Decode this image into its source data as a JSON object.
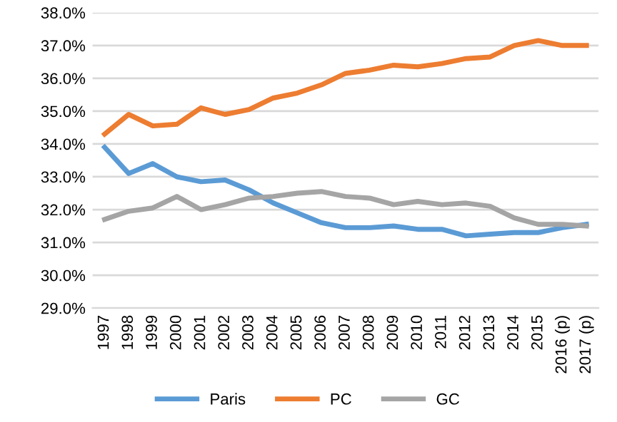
{
  "chart_data": {
    "type": "line",
    "categories": [
      "1997",
      "1998",
      "1999",
      "2000",
      "2001",
      "2002",
      "2003",
      "2004",
      "2005",
      "2006",
      "2007",
      "2008",
      "2009",
      "2010",
      "2011",
      "2012",
      "2013",
      "2014",
      "2015",
      "2016 (p)",
      "2017 (p)"
    ],
    "series": [
      {
        "name": "Paris",
        "color": "#5b9bd5",
        "values": [
          33.9,
          33.1,
          33.4,
          33.0,
          32.85,
          32.9,
          32.6,
          32.2,
          31.9,
          31.6,
          31.45,
          31.45,
          31.5,
          31.4,
          31.4,
          31.2,
          31.25,
          31.3,
          31.3,
          31.45,
          31.55
        ]
      },
      {
        "name": "PC",
        "color": "#ed7d31",
        "values": [
          34.3,
          34.9,
          34.55,
          34.6,
          35.1,
          34.9,
          35.05,
          35.4,
          35.55,
          35.8,
          36.15,
          36.25,
          36.4,
          36.35,
          36.45,
          36.6,
          36.65,
          37.0,
          37.15,
          37.0,
          37.0
        ]
      },
      {
        "name": "GC",
        "color": "#a5a5a5",
        "values": [
          31.7,
          31.95,
          32.05,
          32.4,
          32.0,
          32.15,
          32.35,
          32.4,
          32.5,
          32.55,
          32.4,
          32.35,
          32.15,
          32.25,
          32.15,
          32.2,
          32.1,
          31.75,
          31.55,
          31.55,
          31.5
        ]
      }
    ],
    "ylim": [
      29,
      38
    ],
    "yticks": [
      {
        "value": 29,
        "label": "29.0%"
      },
      {
        "value": 30,
        "label": "30.0%"
      },
      {
        "value": 31,
        "label": "31.0%"
      },
      {
        "value": 32,
        "label": "32.0%"
      },
      {
        "value": 33,
        "label": "33.0%"
      },
      {
        "value": 34,
        "label": "34.0%"
      },
      {
        "value": 35,
        "label": "35.0%"
      },
      {
        "value": 36,
        "label": "36.0%"
      },
      {
        "value": 37,
        "label": "37.0%"
      },
      {
        "value": 38,
        "label": "38.0%"
      }
    ],
    "grid": "y",
    "legend": "bottom",
    "marker": "none",
    "line_style": "solid"
  }
}
